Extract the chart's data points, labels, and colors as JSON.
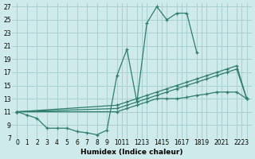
{
  "xlabel": "Humidex (Indice chaleur)",
  "background_color": "#ceeaea",
  "grid_color": "#aacfcf",
  "line_color": "#2e7d6d",
  "xlim": [
    -0.5,
    23.5
  ],
  "ylim": [
    7,
    27.5
  ],
  "xtick_labels": [
    "0",
    "1",
    "2",
    "3",
    "4",
    "5",
    "6",
    "7",
    "8",
    "9",
    "1011",
    "1213",
    "1415",
    "1617",
    "1819",
    "2021",
    "2223"
  ],
  "yticks": [
    7,
    9,
    11,
    13,
    15,
    17,
    19,
    21,
    23,
    25,
    27
  ],
  "series": [
    {
      "x": [
        0,
        1,
        2,
        3,
        4,
        5,
        6,
        7,
        8,
        9,
        10,
        11,
        12,
        13,
        14,
        15,
        16,
        17,
        18
      ],
      "y": [
        11,
        10.5,
        10,
        8.5,
        8.5,
        8.5,
        8.0,
        7.8,
        7.5,
        8.2,
        16.5,
        20.5,
        12.5,
        24.5,
        27,
        25,
        26,
        26,
        20
      ]
    },
    {
      "x": [
        0,
        10,
        11,
        12,
        13,
        14,
        15,
        16,
        17,
        18,
        19,
        20,
        21,
        22,
        23
      ],
      "y": [
        11,
        12,
        12.5,
        13,
        13.5,
        14,
        14.5,
        15,
        15.5,
        16,
        16.5,
        17,
        17.5,
        18,
        13
      ]
    },
    {
      "x": [
        0,
        10,
        11,
        12,
        13,
        14,
        15,
        16,
        17,
        18,
        19,
        20,
        21,
        22,
        23
      ],
      "y": [
        11,
        11.5,
        12,
        12.5,
        13,
        13.5,
        14,
        14.5,
        15,
        15.5,
        16,
        16.5,
        17,
        17.5,
        13
      ]
    },
    {
      "x": [
        0,
        10,
        11,
        12,
        13,
        14,
        15,
        16,
        17,
        18,
        19,
        20,
        21,
        22,
        23
      ],
      "y": [
        11,
        11,
        11.5,
        12,
        12.5,
        13,
        13,
        13,
        13.2,
        13.5,
        13.7,
        14,
        14,
        14,
        13
      ]
    }
  ]
}
